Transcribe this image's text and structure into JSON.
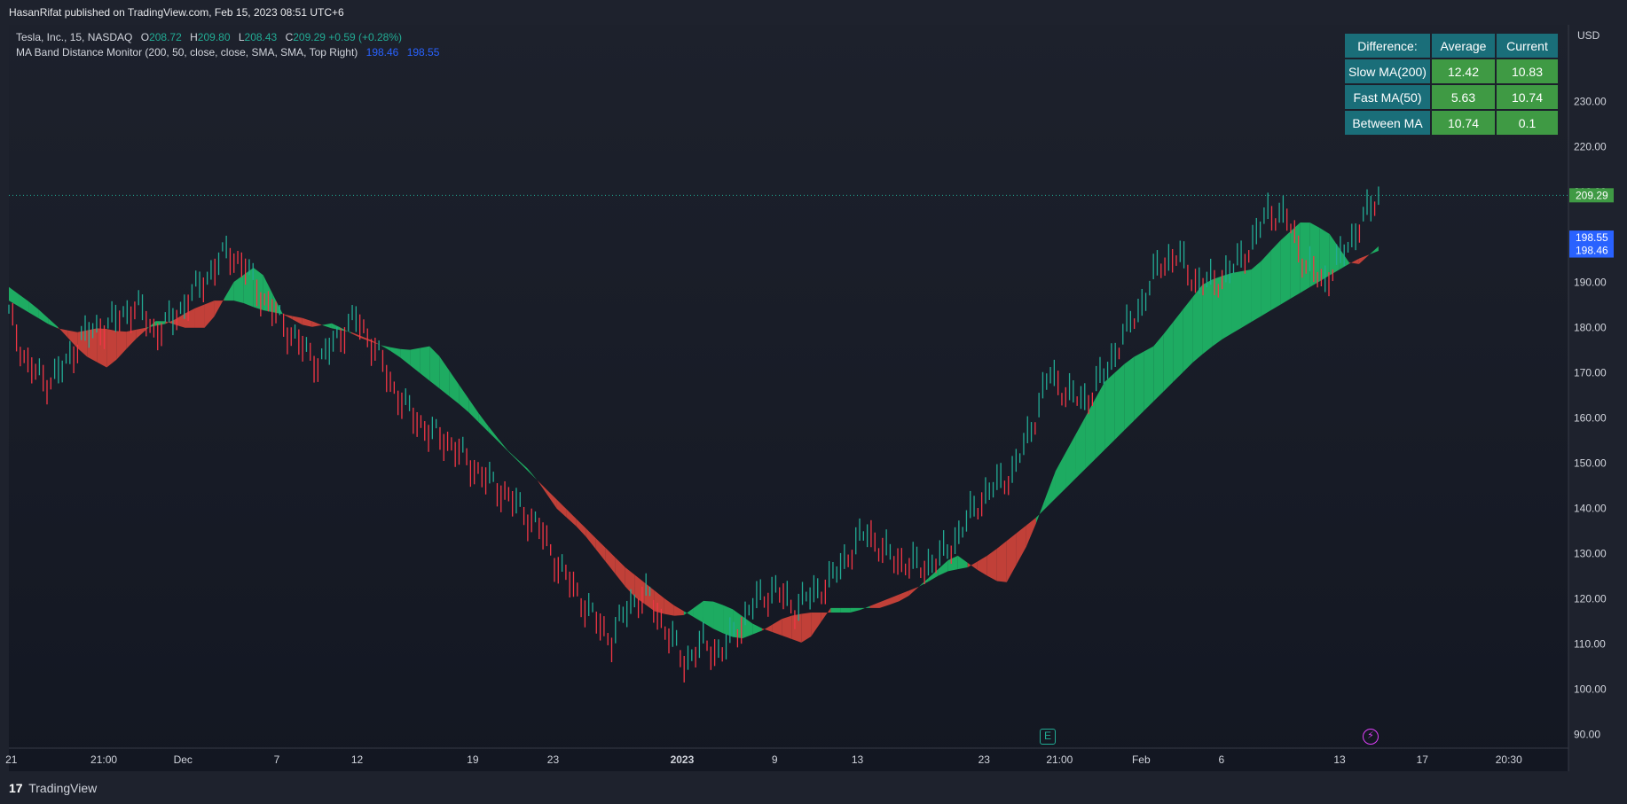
{
  "header": {
    "published": "HasanRifat published on TradingView.com, Feb 15, 2023 08:51 UTC+6"
  },
  "legend": {
    "symbol": "Tesla, Inc., 15, NASDAQ",
    "o_key": "O",
    "o_val": "208.72",
    "h_key": "H",
    "h_val": "209.80",
    "l_key": "L",
    "l_val": "208.43",
    "c_key": "C",
    "c_val": "209.29",
    "change": "+0.59 (+0.28%)",
    "indicator": "MA Band Distance Monitor (200, 50, close, close, SMA, SMA, Top Right)",
    "ind_val1": "198.46",
    "ind_val2": "198.55"
  },
  "info_table": {
    "headers": [
      "Difference:",
      "Average",
      "Current"
    ],
    "rows": [
      [
        "Slow MA(200)",
        "12.42",
        "10.83"
      ],
      [
        "Fast MA(50)",
        "5.63",
        "10.74"
      ],
      [
        "Between MA",
        "10.74",
        "0.1"
      ]
    ]
  },
  "markers": {
    "earnings": "E",
    "dividend": "⚡"
  },
  "footer": {
    "brand": "TradingView",
    "logo": "17"
  },
  "colors": {
    "up": "#22ab94",
    "down": "#f23645",
    "band_green": "#1fbf6a",
    "band_red": "#d9453b",
    "band_yellow": "#c8b43a",
    "last_price_tag": "#3f9a44",
    "ma_tag": "#2962ff"
  },
  "chart_data": {
    "type": "line",
    "ylabel": "USD",
    "ylim": [
      87,
      247
    ],
    "y_ticks": [
      90,
      100,
      110,
      120,
      130,
      140,
      150,
      160,
      170,
      180,
      190,
      200,
      210,
      220,
      230
    ],
    "x_ticks": [
      {
        "label": "21",
        "i": 0.2
      },
      {
        "label": "21:00",
        "i": 7.8
      },
      {
        "label": "Dec",
        "i": 14.3
      },
      {
        "label": "7",
        "i": 22
      },
      {
        "label": "12",
        "i": 28.6
      },
      {
        "label": "19",
        "i": 38.1
      },
      {
        "label": "23",
        "i": 44.7
      },
      {
        "label": "2023",
        "i": 55.3
      },
      {
        "label": "9",
        "i": 62.9
      },
      {
        "label": "13",
        "i": 69.7
      },
      {
        "label": "23",
        "i": 80.1
      },
      {
        "label": "21:00",
        "i": 86.3
      },
      {
        "label": "Feb",
        "i": 93
      },
      {
        "label": "6",
        "i": 99.6
      },
      {
        "label": "13",
        "i": 109.3
      },
      {
        "label": "17",
        "i": 116.1
      },
      {
        "label": "20:30",
        "i": 123.2
      }
    ],
    "x_max": 128.1,
    "last_price": 209.29,
    "price_labels": [
      "209.29",
      "198.55",
      "198.46"
    ],
    "series": [
      {
        "name": "Price",
        "values": [
          183,
          172,
          168,
          171,
          178,
          180,
          182,
          185,
          179,
          182,
          187,
          192,
          197,
          193,
          186,
          181,
          176,
          172,
          178,
          182,
          176,
          167,
          161,
          157,
          155,
          151,
          147,
          144,
          140,
          136,
          128,
          122,
          116,
          111,
          119,
          121,
          113,
          106,
          110,
          108,
          114,
          120,
          122,
          118,
          121,
          124,
          130,
          135,
          130,
          128,
          127,
          129,
          134,
          141,
          145,
          148,
          158,
          170,
          165,
          164,
          170,
          178,
          185,
          194,
          196,
          190,
          190,
          193,
          198,
          206,
          204,
          194,
          190,
          196,
          203,
          209
        ]
      },
      {
        "name": "Slow MA(200)",
        "values": [
          186,
          183,
          180,
          179,
          180,
          179,
          180,
          181,
          184,
          186,
          186,
          184,
          183,
          182,
          180,
          179,
          177,
          174,
          170,
          166,
          162,
          157,
          152,
          147,
          142,
          137,
          132,
          127,
          123,
          119,
          116,
          113,
          111,
          113,
          116,
          117,
          117,
          117,
          119,
          121,
          123,
          126,
          127,
          130,
          134,
          138,
          143,
          148,
          153,
          158,
          163,
          168,
          173,
          177,
          180,
          183,
          186,
          189,
          192,
          195,
          197
        ]
      },
      {
        "name": "Fast MA(50)",
        "values": [
          189,
          185,
          180,
          174,
          171,
          177,
          182,
          180,
          180,
          190,
          194,
          183,
          180,
          181,
          178,
          176,
          175,
          176,
          168,
          160,
          153,
          148,
          140,
          135,
          128,
          121,
          117,
          116,
          120,
          118,
          114,
          112,
          110,
          118,
          118,
          118,
          120,
          125,
          130,
          126,
          123,
          133,
          148,
          158,
          168,
          173,
          176,
          183,
          190,
          192,
          193,
          199,
          204,
          201,
          193,
          198
        ]
      }
    ]
  }
}
